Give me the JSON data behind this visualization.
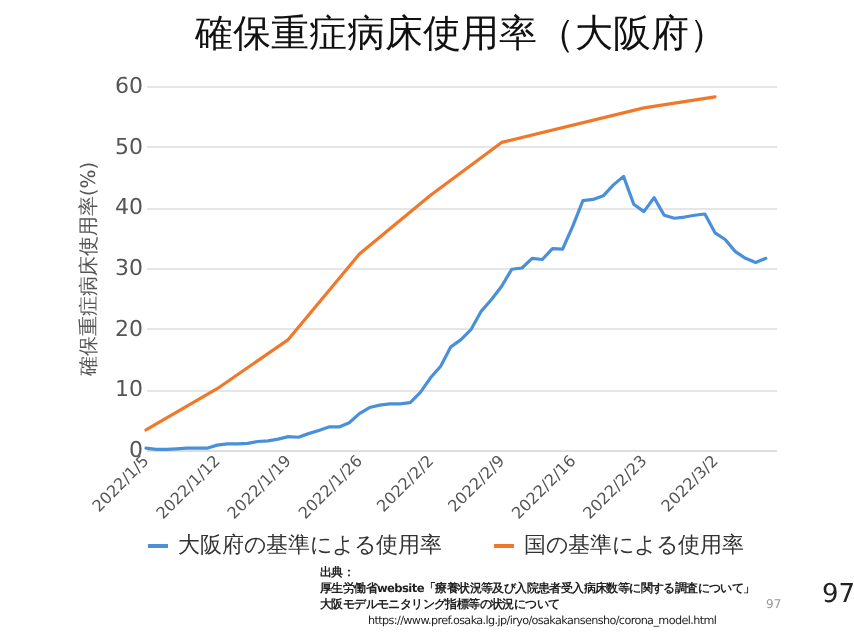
{
  "chart_data": {
    "type": "line",
    "title": "確保重症病床使用率（大阪府）",
    "ylabel": "確保重症病床使用率(%)",
    "xlim": [
      "2022-01-05",
      "2022-03-08"
    ],
    "ylim": [
      0,
      60
    ],
    "yticks": [
      0,
      10,
      20,
      30,
      40,
      50,
      60
    ],
    "xticks": [
      {
        "value": "2022-01-05",
        "label": "2022/1/5"
      },
      {
        "value": "2022-01-12",
        "label": "2022/1/12"
      },
      {
        "value": "2022-01-19",
        "label": "2022/1/19"
      },
      {
        "value": "2022-01-26",
        "label": "2022/1/26"
      },
      {
        "value": "2022-02-02",
        "label": "2022/2/2"
      },
      {
        "value": "2022-02-09",
        "label": "2022/2/9"
      },
      {
        "value": "2022-02-16",
        "label": "2022/2/16"
      },
      {
        "value": "2022-02-23",
        "label": "2022/2/23"
      },
      {
        "value": "2022-03-02",
        "label": "2022/3/2"
      }
    ],
    "grid": "y",
    "legend": "bottom",
    "series": [
      {
        "name": "大阪府の基準による使用率",
        "color": "#4a90d9",
        "x": [
          "2022-01-05",
          "2022-01-06",
          "2022-01-07",
          "2022-01-08",
          "2022-01-09",
          "2022-01-10",
          "2022-01-11",
          "2022-01-12",
          "2022-01-13",
          "2022-01-14",
          "2022-01-15",
          "2022-01-16",
          "2022-01-17",
          "2022-01-18",
          "2022-01-19",
          "2022-01-20",
          "2022-01-21",
          "2022-01-22",
          "2022-01-23",
          "2022-01-24",
          "2022-01-25",
          "2022-01-26",
          "2022-01-27",
          "2022-01-28",
          "2022-01-29",
          "2022-01-30",
          "2022-01-31",
          "2022-02-01",
          "2022-02-02",
          "2022-02-03",
          "2022-02-04",
          "2022-02-05",
          "2022-02-06",
          "2022-02-07",
          "2022-02-08",
          "2022-02-09",
          "2022-02-10",
          "2022-02-11",
          "2022-02-12",
          "2022-02-13",
          "2022-02-14",
          "2022-02-15",
          "2022-02-16",
          "2022-02-17",
          "2022-02-18",
          "2022-02-19",
          "2022-02-20",
          "2022-02-21",
          "2022-02-22",
          "2022-02-23",
          "2022-02-24",
          "2022-02-25",
          "2022-02-26",
          "2022-02-27",
          "2022-02-28",
          "2022-03-01",
          "2022-03-02",
          "2022-03-03",
          "2022-03-04",
          "2022-03-05",
          "2022-03-06",
          "2022-03-07"
        ],
        "values": [
          0.3,
          0.1,
          0.1,
          0.2,
          0.3,
          0.3,
          0.3,
          0.8,
          1.0,
          1.0,
          1.1,
          1.4,
          1.5,
          1.8,
          2.2,
          2.1,
          2.7,
          3.2,
          3.8,
          3.8,
          4.5,
          6.0,
          7.0,
          7.4,
          7.6,
          7.6,
          7.8,
          9.5,
          11.9,
          13.8,
          17.0,
          18.2,
          19.9,
          22.9,
          24.8,
          27.0,
          29.8,
          30.0,
          31.6,
          31.4,
          33.2,
          33.1,
          36.9,
          41.1,
          41.3,
          41.9,
          43.7,
          45.1,
          40.5,
          39.3,
          41.6,
          38.7,
          38.2,
          38.4,
          38.7,
          38.9,
          35.8,
          34.7,
          32.7,
          31.6,
          30.9,
          31.6
        ]
      },
      {
        "name": "国の基準による使用率",
        "color": "#f0782a",
        "x": [
          "2022-01-05",
          "2022-01-12",
          "2022-01-19",
          "2022-01-26",
          "2022-02-02",
          "2022-02-09",
          "2022-02-23",
          "2022-03-02"
        ],
        "values": [
          3.3,
          10.1,
          18.2,
          32.3,
          42.0,
          50.7,
          56.4,
          58.2
        ]
      }
    ],
    "annotations": [
      "出典：",
      "厚生労働省website「療養状況等及び入院患者受入病床数等に関する調査について」",
      "大阪モデルモニタリング指標等の状況について",
      "https://www.pref.osaka.lg.jp/iryo/osakakansensho/corona_model.html",
      "97",
      "97"
    ]
  }
}
